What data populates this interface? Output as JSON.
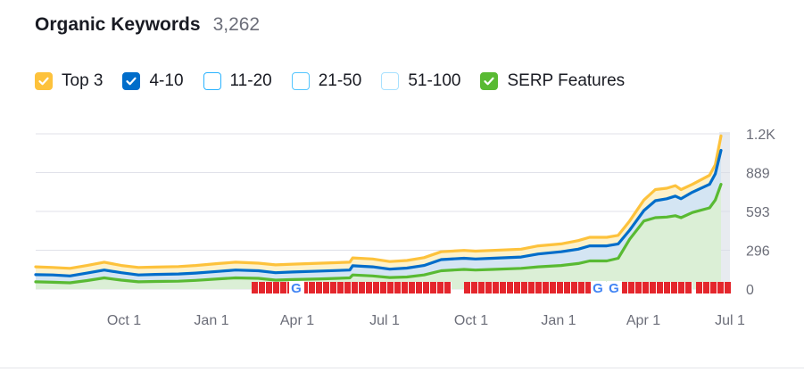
{
  "header": {
    "title": "Organic Keywords",
    "count": "3,262"
  },
  "legend": [
    {
      "label": "Top 3",
      "checked": true,
      "color": "#fdc23c",
      "border": "#fdc23c"
    },
    {
      "label": "4-10",
      "checked": true,
      "color": "#006dca",
      "border": "#006dca"
    },
    {
      "label": "11-20",
      "checked": false,
      "color": "#ffffff",
      "border": "#2bb3ff"
    },
    {
      "label": "21-50",
      "checked": false,
      "color": "#ffffff",
      "border": "#54c6ff"
    },
    {
      "label": "51-100",
      "checked": false,
      "color": "#ffffff",
      "border": "#a8e1ff"
    },
    {
      "label": "SERP Features",
      "checked": true,
      "color": "#59ba33",
      "border": "#59ba33"
    }
  ],
  "chart_data": {
    "type": "area",
    "x_ticks": [
      "Oct 1",
      "Jan 1",
      "Apr 1",
      "Jul 1",
      "Oct 1",
      "Jan 1",
      "Apr 1",
      "Jul 1"
    ],
    "y_ticks": [
      "0",
      "296",
      "593",
      "889",
      "1.2K"
    ],
    "ylim": [
      0,
      1186
    ],
    "x_range_months": [
      0,
      24
    ],
    "series": [
      {
        "name": "Top 3",
        "color": "#fdc23c",
        "points": [
          [
            0,
            170
          ],
          [
            0.6,
            165
          ],
          [
            1.2,
            158
          ],
          [
            1.8,
            180
          ],
          [
            2.4,
            205
          ],
          [
            3,
            180
          ],
          [
            3.6,
            165
          ],
          [
            4.2,
            168
          ],
          [
            5,
            172
          ],
          [
            5.6,
            180
          ],
          [
            6.4,
            195
          ],
          [
            7,
            205
          ],
          [
            7.8,
            198
          ],
          [
            8.4,
            185
          ],
          [
            9,
            190
          ],
          [
            10,
            198
          ],
          [
            11,
            205
          ],
          [
            11.1,
            238
          ],
          [
            11.8,
            230
          ],
          [
            12.4,
            210
          ],
          [
            13,
            218
          ],
          [
            13.6,
            240
          ],
          [
            14.2,
            285
          ],
          [
            15,
            295
          ],
          [
            15.4,
            290
          ],
          [
            16,
            295
          ],
          [
            17,
            305
          ],
          [
            17.6,
            330
          ],
          [
            18.4,
            345
          ],
          [
            19,
            370
          ],
          [
            19.4,
            395
          ],
          [
            20,
            395
          ],
          [
            20.4,
            410
          ],
          [
            20.8,
            520
          ],
          [
            21.3,
            680
          ],
          [
            21.7,
            760
          ],
          [
            22.1,
            770
          ],
          [
            22.4,
            790
          ],
          [
            22.6,
            760
          ],
          [
            23,
            800
          ],
          [
            23.6,
            870
          ],
          [
            23.8,
            950
          ],
          [
            24,
            1170
          ]
        ]
      },
      {
        "name": "4-10",
        "color": "#006dca",
        "points": [
          [
            0,
            110
          ],
          [
            0.6,
            108
          ],
          [
            1.2,
            100
          ],
          [
            1.8,
            122
          ],
          [
            2.4,
            145
          ],
          [
            3,
            125
          ],
          [
            3.6,
            108
          ],
          [
            4.2,
            112
          ],
          [
            5,
            115
          ],
          [
            5.6,
            122
          ],
          [
            6.4,
            135
          ],
          [
            7,
            145
          ],
          [
            7.8,
            140
          ],
          [
            8.4,
            125
          ],
          [
            9,
            130
          ],
          [
            10,
            138
          ],
          [
            11,
            145
          ],
          [
            11.1,
            178
          ],
          [
            11.8,
            170
          ],
          [
            12.4,
            152
          ],
          [
            13,
            160
          ],
          [
            13.6,
            180
          ],
          [
            14.2,
            225
          ],
          [
            15,
            235
          ],
          [
            15.4,
            230
          ],
          [
            16,
            235
          ],
          [
            17,
            245
          ],
          [
            17.6,
            268
          ],
          [
            18.4,
            285
          ],
          [
            19,
            305
          ],
          [
            19.4,
            330
          ],
          [
            20,
            330
          ],
          [
            20.4,
            345
          ],
          [
            20.8,
            450
          ],
          [
            21.3,
            600
          ],
          [
            21.7,
            675
          ],
          [
            22.1,
            690
          ],
          [
            22.4,
            710
          ],
          [
            22.6,
            690
          ],
          [
            23,
            740
          ],
          [
            23.6,
            800
          ],
          [
            23.8,
            880
          ],
          [
            24,
            1060
          ]
        ]
      },
      {
        "name": "SERP Features",
        "color": "#59ba33",
        "points": [
          [
            0,
            55
          ],
          [
            0.6,
            52
          ],
          [
            1.2,
            48
          ],
          [
            1.8,
            65
          ],
          [
            2.4,
            85
          ],
          [
            3,
            68
          ],
          [
            3.6,
            55
          ],
          [
            4.2,
            58
          ],
          [
            5,
            60
          ],
          [
            5.6,
            66
          ],
          [
            6.4,
            78
          ],
          [
            7,
            85
          ],
          [
            7.8,
            82
          ],
          [
            8.4,
            68
          ],
          [
            9,
            72
          ],
          [
            10,
            78
          ],
          [
            11,
            85
          ],
          [
            11.1,
            108
          ],
          [
            11.8,
            100
          ],
          [
            12.4,
            88
          ],
          [
            13,
            92
          ],
          [
            13.6,
            108
          ],
          [
            14.2,
            140
          ],
          [
            15,
            150
          ],
          [
            15.4,
            145
          ],
          [
            16,
            150
          ],
          [
            17,
            158
          ],
          [
            17.6,
            170
          ],
          [
            18.4,
            180
          ],
          [
            19,
            195
          ],
          [
            19.4,
            215
          ],
          [
            20,
            215
          ],
          [
            20.4,
            235
          ],
          [
            20.8,
            380
          ],
          [
            21.3,
            520
          ],
          [
            21.7,
            545
          ],
          [
            22.1,
            550
          ],
          [
            22.4,
            560
          ],
          [
            22.6,
            545
          ],
          [
            23,
            585
          ],
          [
            23.6,
            620
          ],
          [
            23.8,
            680
          ],
          [
            24,
            800
          ]
        ]
      }
    ],
    "grid": true
  }
}
